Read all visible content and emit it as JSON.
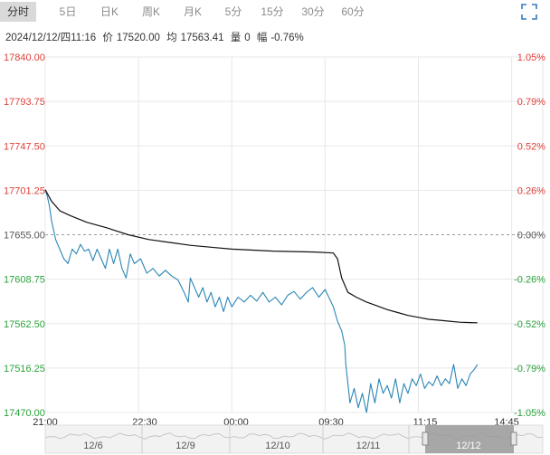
{
  "tabs": [
    {
      "label": "分时",
      "active": true
    },
    {
      "label": "5日",
      "active": false
    },
    {
      "label": "日K",
      "active": false
    },
    {
      "label": "周K",
      "active": false
    },
    {
      "label": "月K",
      "active": false
    },
    {
      "label": "5分",
      "active": false
    },
    {
      "label": "15分",
      "active": false
    },
    {
      "label": "30分",
      "active": false
    },
    {
      "label": "60分",
      "active": false
    }
  ],
  "info": {
    "datetime": "2024/12/12/四11:16",
    "price_label": "价",
    "price": "17520.00",
    "avg_label": "均",
    "avg": "17563.41",
    "volume_label": "量",
    "volume": "0",
    "change_label": "幅",
    "change": "-0.76%"
  },
  "colors": {
    "up": "#e0403a",
    "down": "#2aa23a",
    "flat": "#555555",
    "price_line": "#2a86b4",
    "avg_line": "#111111",
    "grid": "#e8e8e8",
    "baseline": "#999999",
    "navigator_bg": "#f2f2f2",
    "navigator_selected": "#9a9a9a"
  },
  "chart_data": {
    "type": "line",
    "y_axis_left": {
      "ticks": [
        "17840.00",
        "17793.75",
        "17747.50",
        "17701.25",
        "17655.00",
        "17608.75",
        "17562.50",
        "17516.25",
        "17470.00"
      ],
      "range": [
        17470.0,
        17840.0
      ],
      "base": 17655.0
    },
    "y_axis_right": {
      "ticks": [
        "1.05%",
        "0.79%",
        "0.52%",
        "0.26%",
        "0.00%",
        "-0.26%",
        "-0.52%",
        "-0.79%",
        "-1.05%"
      ]
    },
    "x_axis": {
      "ticks": [
        "21:00",
        "22:30",
        "00:00",
        "09:30",
        "11:15",
        "14:45"
      ]
    },
    "grid": true,
    "series": [
      {
        "key": "price",
        "points": [
          [
            0,
            17702
          ],
          [
            0.1,
            17695
          ],
          [
            0.2,
            17685
          ],
          [
            0.3,
            17670
          ],
          [
            0.4,
            17660
          ],
          [
            0.5,
            17650
          ],
          [
            0.7,
            17640
          ],
          [
            0.9,
            17630
          ],
          [
            1.1,
            17625
          ],
          [
            1.3,
            17640
          ],
          [
            1.5,
            17635
          ],
          [
            1.7,
            17645
          ],
          [
            1.9,
            17638
          ],
          [
            2.1,
            17640
          ],
          [
            2.3,
            17628
          ],
          [
            2.5,
            17640
          ],
          [
            2.7,
            17630
          ],
          [
            2.9,
            17620
          ],
          [
            3.1,
            17640
          ],
          [
            3.3,
            17625
          ],
          [
            3.5,
            17640
          ],
          [
            3.7,
            17620
          ],
          [
            3.9,
            17610
          ],
          [
            4.1,
            17635
          ],
          [
            4.3,
            17625
          ],
          [
            4.6,
            17630
          ],
          [
            4.9,
            17615
          ],
          [
            5.2,
            17620
          ],
          [
            5.5,
            17612
          ],
          [
            5.8,
            17618
          ],
          [
            6.1,
            17612
          ],
          [
            6.4,
            17608
          ],
          [
            6.7,
            17595
          ],
          [
            6.9,
            17585
          ],
          [
            7.0,
            17610
          ],
          [
            7.2,
            17600
          ],
          [
            7.4,
            17590
          ],
          [
            7.6,
            17600
          ],
          [
            7.8,
            17585
          ],
          [
            8.0,
            17595
          ],
          [
            8.2,
            17580
          ],
          [
            8.4,
            17590
          ],
          [
            8.6,
            17575
          ],
          [
            8.8,
            17590
          ],
          [
            9.0,
            17580
          ],
          [
            9.3,
            17590
          ],
          [
            9.6,
            17585
          ],
          [
            9.9,
            17592
          ],
          [
            10.2,
            17586
          ],
          [
            10.5,
            17595
          ],
          [
            10.8,
            17585
          ],
          [
            11.1,
            17590
          ],
          [
            11.4,
            17582
          ],
          [
            11.7,
            17592
          ],
          [
            12.0,
            17596
          ],
          [
            12.3,
            17588
          ],
          [
            12.6,
            17595
          ],
          [
            12.9,
            17600
          ],
          [
            13.2,
            17590
          ],
          [
            13.5,
            17598
          ],
          [
            13.9,
            17580
          ],
          [
            14.1,
            17565
          ],
          [
            14.3,
            17555
          ],
          [
            14.45,
            17540
          ],
          [
            14.5,
            17520
          ],
          [
            14.7,
            17480
          ],
          [
            14.9,
            17495
          ],
          [
            15.1,
            17475
          ],
          [
            15.3,
            17490
          ],
          [
            15.5,
            17470
          ],
          [
            15.7,
            17500
          ],
          [
            15.9,
            17480
          ],
          [
            16.1,
            17505
          ],
          [
            16.3,
            17490
          ],
          [
            16.5,
            17498
          ],
          [
            16.7,
            17485
          ],
          [
            16.9,
            17505
          ],
          [
            17.1,
            17480
          ],
          [
            17.3,
            17500
          ],
          [
            17.5,
            17490
          ],
          [
            17.7,
            17505
          ],
          [
            17.9,
            17498
          ],
          [
            18.1,
            17510
          ],
          [
            18.3,
            17495
          ],
          [
            18.5,
            17502
          ],
          [
            18.7,
            17498
          ],
          [
            18.9,
            17508
          ],
          [
            19.1,
            17498
          ],
          [
            19.3,
            17505
          ],
          [
            19.5,
            17500
          ],
          [
            19.7,
            17520
          ],
          [
            19.9,
            17495
          ],
          [
            20.1,
            17505
          ],
          [
            20.3,
            17498
          ],
          [
            20.5,
            17510
          ],
          [
            20.7,
            17515
          ],
          [
            20.85,
            17520
          ]
        ]
      },
      {
        "key": "avg",
        "points": [
          [
            0,
            17702
          ],
          [
            0.3,
            17690
          ],
          [
            0.7,
            17680
          ],
          [
            1.2,
            17675
          ],
          [
            2.0,
            17668
          ],
          [
            3.0,
            17662
          ],
          [
            4.0,
            17655
          ],
          [
            5.0,
            17650
          ],
          [
            6.0,
            17647
          ],
          [
            7.0,
            17644
          ],
          [
            8.0,
            17642
          ],
          [
            9.0,
            17640
          ],
          [
            10.0,
            17639
          ],
          [
            11.0,
            17638
          ],
          [
            12.0,
            17637.5
          ],
          [
            13.0,
            17637
          ],
          [
            13.9,
            17636
          ],
          [
            14.1,
            17630
          ],
          [
            14.3,
            17610
          ],
          [
            14.6,
            17595
          ],
          [
            15.0,
            17590
          ],
          [
            15.5,
            17585
          ],
          [
            16.0,
            17581
          ],
          [
            16.5,
            17577
          ],
          [
            17.0,
            17574
          ],
          [
            17.5,
            17571
          ],
          [
            18.0,
            17569
          ],
          [
            18.5,
            17567
          ],
          [
            19.0,
            17566
          ],
          [
            19.5,
            17565
          ],
          [
            20.0,
            17564
          ],
          [
            20.5,
            17563.6
          ],
          [
            20.85,
            17563.4
          ]
        ]
      }
    ]
  },
  "navigator": {
    "dates": [
      "12/6",
      "12/9",
      "12/10",
      "12/11",
      "12/12"
    ]
  }
}
